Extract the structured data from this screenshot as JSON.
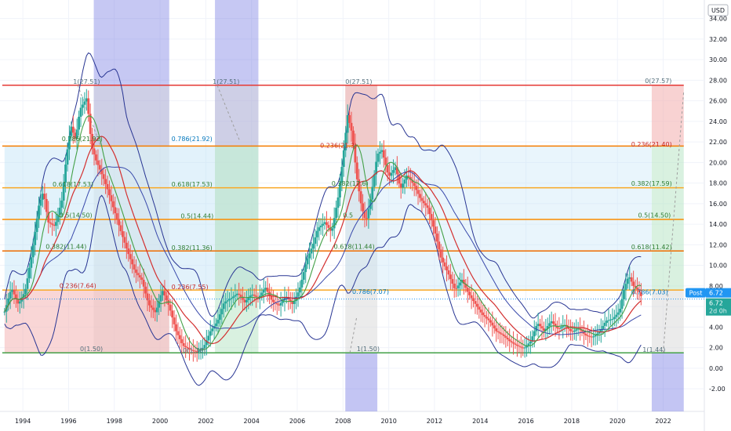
{
  "currency": "USD",
  "chart_data": {
    "type": "candlestick",
    "x_ticks": [
      "1994",
      "1996",
      "1998",
      "2000",
      "2002",
      "2004",
      "2006",
      "2008",
      "2010",
      "2012",
      "2014",
      "2016",
      "2018",
      "2020",
      "2022"
    ],
    "y_ticks": [
      "-2.00",
      "0.00",
      "2.00",
      "4.00",
      "6.00",
      "8.00",
      "10.00",
      "12.00",
      "14.00",
      "16.00",
      "18.00",
      "20.00",
      "22.00",
      "24.00",
      "26.00",
      "28.00",
      "30.00",
      "32.00",
      "34.00"
    ],
    "xlim": [
      1993.0,
      2023.8
    ],
    "ylim": [
      -4.2,
      35.8
    ],
    "post_label": "Post",
    "last_price": "6.72",
    "last_price_value": 6.72,
    "time_to_close": "2d 0h",
    "price_path": [
      [
        1993.2,
        5.5
      ],
      [
        1993.5,
        7.8
      ],
      [
        1993.8,
        6.2
      ],
      [
        1994.1,
        7.5
      ],
      [
        1994.4,
        11.2
      ],
      [
        1994.7,
        15.8
      ],
      [
        1994.9,
        17.2
      ],
      [
        1995.1,
        14.2
      ],
      [
        1995.4,
        13.8
      ],
      [
        1995.7,
        16.3
      ],
      [
        1995.9,
        20.5
      ],
      [
        1996.1,
        23.6
      ],
      [
        1996.3,
        22.2
      ],
      [
        1996.5,
        25.2
      ],
      [
        1996.8,
        26.3
      ],
      [
        1997.0,
        21.6
      ],
      [
        1997.2,
        20.2
      ],
      [
        1997.5,
        18.6
      ],
      [
        1997.7,
        17.4
      ],
      [
        1998.0,
        15.3
      ],
      [
        1998.3,
        13.2
      ],
      [
        1998.6,
        11.2
      ],
      [
        1998.9,
        9.4
      ],
      [
        1999.2,
        8.6
      ],
      [
        1999.5,
        6.2
      ],
      [
        1999.8,
        5.4
      ],
      [
        2000.1,
        7.6
      ],
      [
        2000.4,
        6.0
      ],
      [
        2000.7,
        3.6
      ],
      [
        2001.0,
        2.2
      ],
      [
        2001.3,
        1.8
      ],
      [
        2001.6,
        1.6
      ],
      [
        2001.9,
        2.0
      ],
      [
        2002.2,
        3.6
      ],
      [
        2002.5,
        4.5
      ],
      [
        2002.8,
        6.4
      ],
      [
        2003.1,
        6.8
      ],
      [
        2003.4,
        7.3
      ],
      [
        2003.7,
        6.4
      ],
      [
        2004.0,
        7.2
      ],
      [
        2004.3,
        6.8
      ],
      [
        2004.6,
        7.9
      ],
      [
        2004.9,
        6.5
      ],
      [
        2005.2,
        6.1
      ],
      [
        2005.5,
        7.0
      ],
      [
        2005.8,
        6.2
      ],
      [
        2006.1,
        7.7
      ],
      [
        2006.4,
        10.4
      ],
      [
        2006.7,
        12.1
      ],
      [
        2006.9,
        13.6
      ],
      [
        2007.2,
        14.2
      ],
      [
        2007.5,
        13.2
      ],
      [
        2007.8,
        16.8
      ],
      [
        2008.0,
        20.5
      ],
      [
        2008.2,
        24.6
      ],
      [
        2008.4,
        22.8
      ],
      [
        2008.6,
        18.6
      ],
      [
        2008.8,
        15.8
      ],
      [
        2009.0,
        14.2
      ],
      [
        2009.2,
        16.4
      ],
      [
        2009.5,
        20.8
      ],
      [
        2009.7,
        21.2
      ],
      [
        2010.0,
        18.6
      ],
      [
        2010.3,
        19.6
      ],
      [
        2010.5,
        17.4
      ],
      [
        2010.8,
        18.8
      ],
      [
        2011.1,
        17.8
      ],
      [
        2011.4,
        16.4
      ],
      [
        2011.7,
        15.6
      ],
      [
        2012.0,
        13.4
      ],
      [
        2012.3,
        10.6
      ],
      [
        2012.6,
        9.2
      ],
      [
        2012.9,
        7.6
      ],
      [
        2013.2,
        8.6
      ],
      [
        2013.5,
        7.2
      ],
      [
        2013.8,
        6.2
      ],
      [
        2014.1,
        5.2
      ],
      [
        2014.4,
        4.6
      ],
      [
        2014.7,
        3.6
      ],
      [
        2015.0,
        3.2
      ],
      [
        2015.3,
        2.6
      ],
      [
        2015.6,
        2.2
      ],
      [
        2015.9,
        1.9
      ],
      [
        2016.2,
        2.6
      ],
      [
        2016.5,
        4.4
      ],
      [
        2016.8,
        3.6
      ],
      [
        2017.1,
        4.6
      ],
      [
        2017.4,
        3.8
      ],
      [
        2017.7,
        4.2
      ],
      [
        2018.0,
        3.5
      ],
      [
        2018.3,
        3.9
      ],
      [
        2018.6,
        3.2
      ],
      [
        2018.9,
        3.0
      ],
      [
        2019.2,
        3.5
      ],
      [
        2019.5,
        4.6
      ],
      [
        2019.8,
        4.8
      ],
      [
        2020.1,
        5.6
      ],
      [
        2020.3,
        7.8
      ],
      [
        2020.5,
        9.0
      ],
      [
        2020.7,
        8.0
      ],
      [
        2020.9,
        7.6
      ],
      [
        2021.1,
        6.72
      ]
    ],
    "fib_lines": [
      {
        "price": 27.51,
        "color": "#e53935"
      },
      {
        "price": 21.6,
        "color": "#f57c00"
      },
      {
        "price": 17.54,
        "color": "#f9a825"
      },
      {
        "price": 14.47,
        "color": "#fb8c00"
      },
      {
        "price": 11.4,
        "color": "#ef6c00"
      },
      {
        "price": 7.6,
        "color": "#f9a825"
      },
      {
        "price": 1.5,
        "color": "#43a047"
      }
    ],
    "fib_labels": [
      {
        "text": "1(27.51)",
        "x": 1996.2,
        "y": 27.51,
        "color": "#546e7a"
      },
      {
        "text": "1(27.51)",
        "x": 2002.3,
        "y": 27.51,
        "color": "#546e7a"
      },
      {
        "text": "0(27.51)",
        "x": 2008.1,
        "y": 27.51,
        "color": "#546e7a"
      },
      {
        "text": "0(27.57)",
        "x": 2021.2,
        "y": 27.57,
        "color": "#546e7a"
      },
      {
        "text": "0.786(21.92)",
        "x": 1995.7,
        "y": 21.92,
        "color": "#2e7d32"
      },
      {
        "text": "0.786(21.92)",
        "x": 2000.5,
        "y": 21.92,
        "color": "#0277bd"
      },
      {
        "text": "0.236(21.3)",
        "x": 2007.0,
        "y": 21.3,
        "color": "#c62828"
      },
      {
        "text": "0.236(21.40)",
        "x": 2020.6,
        "y": 21.4,
        "color": "#c62828"
      },
      {
        "text": "0.618(17.53)",
        "x": 1995.3,
        "y": 17.53,
        "color": "#2e7d32"
      },
      {
        "text": "0.618(17.53)",
        "x": 2000.5,
        "y": 17.53,
        "color": "#2e7d32"
      },
      {
        "text": "0.382(17.6)",
        "x": 2007.5,
        "y": 17.6,
        "color": "#2e7d32"
      },
      {
        "text": "0.382(17.59)",
        "x": 2020.6,
        "y": 17.59,
        "color": "#2e7d32"
      },
      {
        "text": "0.5(14.50)",
        "x": 1995.6,
        "y": 14.5,
        "color": "#2e7d32"
      },
      {
        "text": "0.5(14.44)",
        "x": 2000.9,
        "y": 14.44,
        "color": "#2e7d32"
      },
      {
        "text": "0.5",
        "x": 2008.0,
        "y": 14.5,
        "color": "#2e7d32"
      },
      {
        "text": "0.5(14.50)",
        "x": 2020.9,
        "y": 14.5,
        "color": "#2e7d32"
      },
      {
        "text": "0.382(11.44)",
        "x": 1995.0,
        "y": 11.44,
        "color": "#2e7d32"
      },
      {
        "text": "0.382(11.36)",
        "x": 2000.5,
        "y": 11.36,
        "color": "#2e7d32"
      },
      {
        "text": "0.618(11.44)",
        "x": 2007.6,
        "y": 11.44,
        "color": "#2e7d32"
      },
      {
        "text": "0.618(11.42)",
        "x": 2020.6,
        "y": 11.42,
        "color": "#2e7d32"
      },
      {
        "text": "0.236(7.64)",
        "x": 1995.6,
        "y": 7.64,
        "color": "#c62828"
      },
      {
        "text": "0.236(7.55)",
        "x": 2000.5,
        "y": 7.55,
        "color": "#c62828"
      },
      {
        "text": "0.786(7.07)",
        "x": 2008.4,
        "y": 7.07,
        "color": "#0277bd"
      },
      {
        "text": "0.786(7.03)",
        "x": 2020.6,
        "y": 7.03,
        "color": "#0277bd"
      },
      {
        "text": "0(1.50)",
        "x": 1996.5,
        "y": 1.5,
        "color": "#546e7a"
      },
      {
        "text": "0(1.38)",
        "x": 2001.0,
        "y": 1.38,
        "color": "#546e7a"
      },
      {
        "text": "1(1.50)",
        "x": 2008.6,
        "y": 1.5,
        "color": "#546e7a"
      },
      {
        "text": "1(1.44)",
        "x": 2021.1,
        "y": 1.44,
        "color": "#546e7a"
      }
    ]
  }
}
